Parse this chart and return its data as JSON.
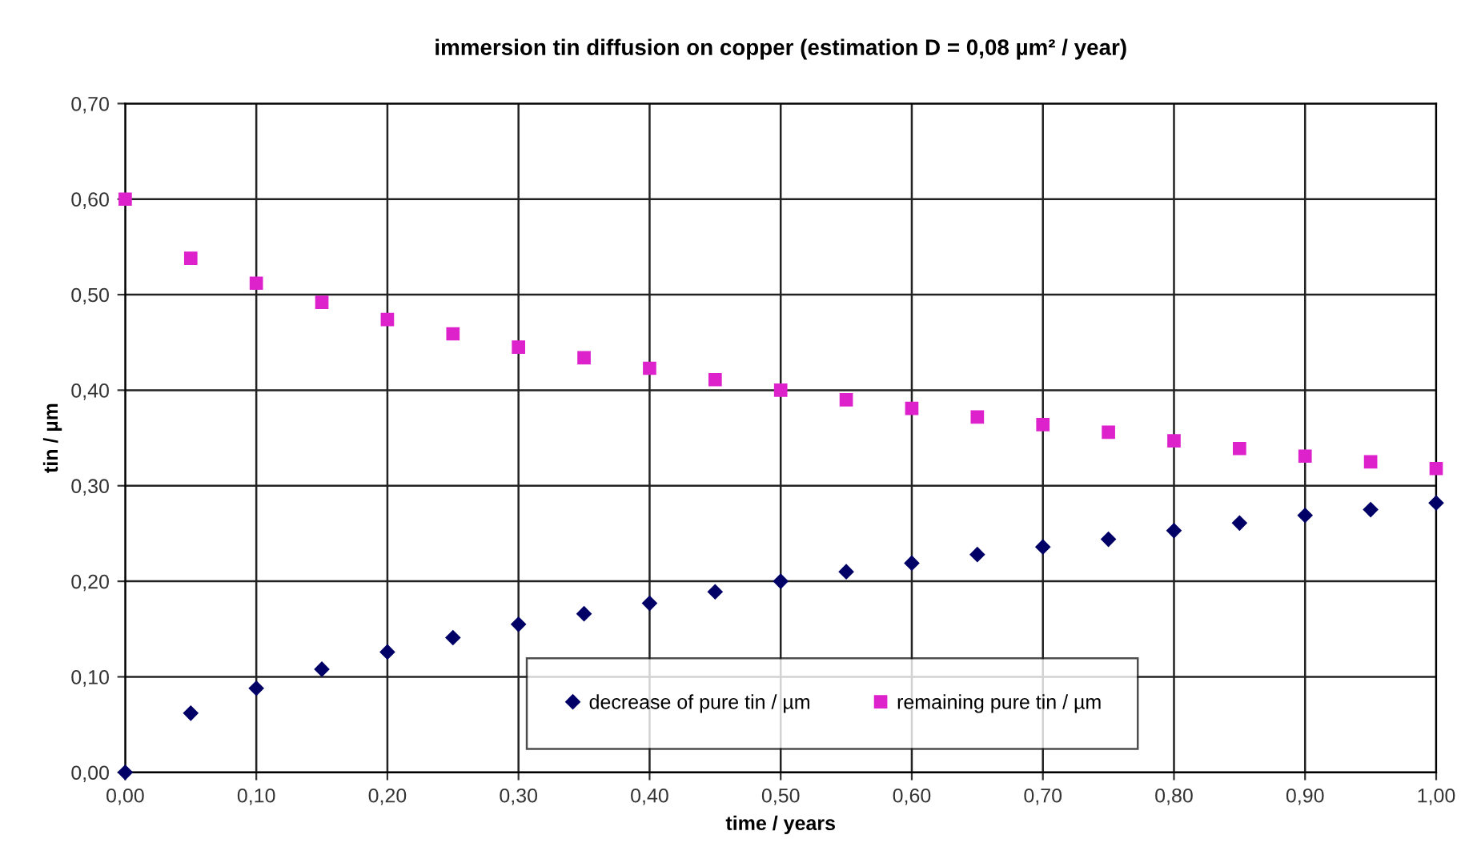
{
  "chart_data": {
    "type": "scatter",
    "title": "immersion tin diffusion on copper (estimation D = 0,08 µm² / year)",
    "xlabel": "time / years",
    "ylabel": "tin / µm",
    "x": [
      0,
      0.05,
      0.1,
      0.15,
      0.2,
      0.25,
      0.3,
      0.35,
      0.4,
      0.45,
      0.5,
      0.55,
      0.6,
      0.65,
      0.7,
      0.75,
      0.8,
      0.85,
      0.9,
      0.95,
      1.0
    ],
    "series": [
      {
        "name": "decrease of pure tin / µm",
        "color": "#000066",
        "marker": "diamond",
        "values": [
          0,
          0.062,
          0.088,
          0.108,
          0.126,
          0.141,
          0.155,
          0.166,
          0.177,
          0.189,
          0.2,
          0.21,
          0.219,
          0.228,
          0.236,
          0.244,
          0.253,
          0.261,
          0.269,
          0.275,
          0.282
        ]
      },
      {
        "name": "remaining pure tin / µm",
        "color": "#dd22cc",
        "marker": "square",
        "values": [
          0.6,
          0.538,
          0.512,
          0.492,
          0.474,
          0.459,
          0.445,
          0.434,
          0.423,
          0.411,
          0.4,
          0.39,
          0.381,
          0.372,
          0.364,
          0.356,
          0.347,
          0.339,
          0.331,
          0.325,
          0.318
        ]
      }
    ],
    "xlim": [
      0,
      1.0
    ],
    "xticks": [
      {
        "value": 0,
        "label": "0,00"
      },
      {
        "value": 0.1,
        "label": "0,10"
      },
      {
        "value": 0.2,
        "label": "0,20"
      },
      {
        "value": 0.3,
        "label": "0,30"
      },
      {
        "value": 0.4,
        "label": "0,40"
      },
      {
        "value": 0.5,
        "label": "0,50"
      },
      {
        "value": 0.6,
        "label": "0,60"
      },
      {
        "value": 0.7,
        "label": "0,70"
      },
      {
        "value": 0.8,
        "label": "0,80"
      },
      {
        "value": 0.9,
        "label": "0,90"
      },
      {
        "value": 1.0,
        "label": "1,00"
      }
    ],
    "ylim": [
      0,
      0.7
    ],
    "yticks": [
      {
        "value": 0,
        "label": "0,00"
      },
      {
        "value": 0.1,
        "label": "0,10"
      },
      {
        "value": 0.2,
        "label": "0,20"
      },
      {
        "value": 0.3,
        "label": "0,30"
      },
      {
        "value": 0.4,
        "label": "0,40"
      },
      {
        "value": 0.5,
        "label": "0,50"
      },
      {
        "value": 0.6,
        "label": "0,60"
      },
      {
        "value": 0.7,
        "label": "0,70"
      }
    ],
    "grid": true,
    "legend": "bottom right"
  }
}
